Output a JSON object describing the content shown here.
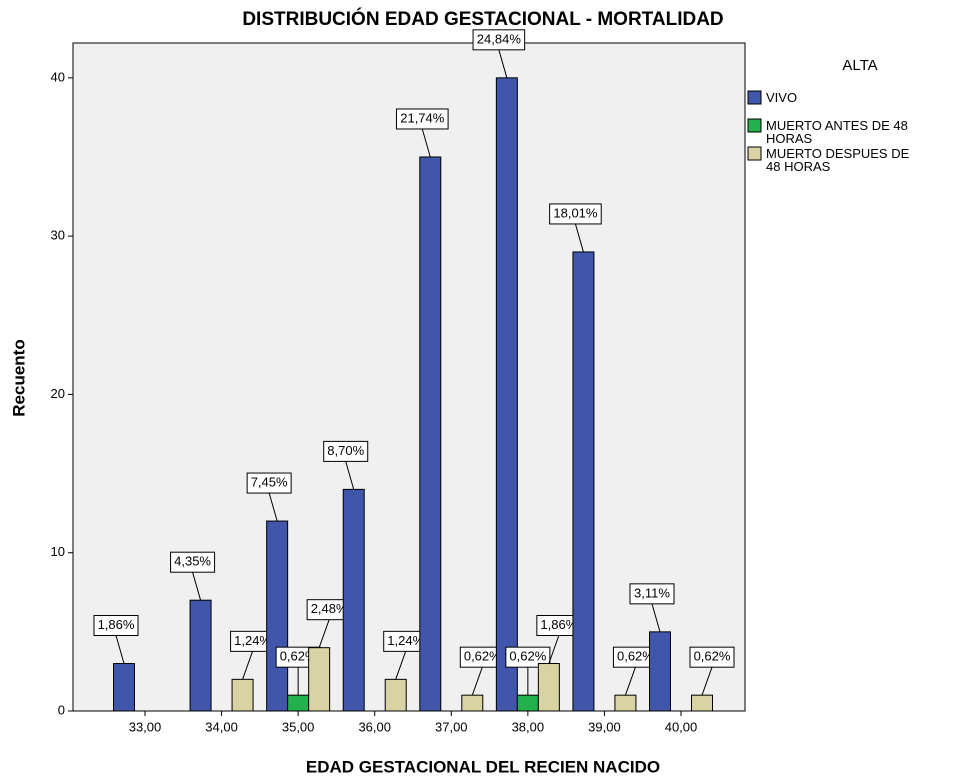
{
  "chart_data": {
    "type": "bar",
    "title": "DISTRIBUCIÓN EDAD GESTACIONAL - MORTALIDAD",
    "x_label": "EDAD GESTACIONAL DEL RECIEN NACIDO",
    "y_label": "Recuento",
    "legend_title": "ALTA",
    "categories": [
      "33,00",
      "34,00",
      "35,00",
      "36,00",
      "37,00",
      "38,00",
      "39,00",
      "40,00"
    ],
    "series": [
      {
        "name": "VIVO",
        "color": "#3f56aa",
        "values": [
          3,
          7,
          12,
          14,
          35,
          40,
          29,
          5
        ],
        "labels": [
          "1,86%",
          "4,35%",
          "7,45%",
          "8,70%",
          "21,74%",
          "24,84%",
          "18,01%",
          "3,11%"
        ]
      },
      {
        "name": "MUERTO ANTES DE 48 HORAS",
        "color": "#22b14c",
        "values": [
          null,
          null,
          1,
          null,
          null,
          1,
          null,
          null
        ],
        "labels": [
          null,
          null,
          "0,62%",
          null,
          null,
          "0,62%",
          null,
          null
        ]
      },
      {
        "name": "MUERTO DESPUES DE 48 HORAS",
        "color": "#d9d3a3",
        "values": [
          null,
          2,
          4,
          2,
          1,
          3,
          1,
          1
        ],
        "labels": [
          null,
          "1,24%",
          "2,48%",
          "1,24%",
          "0,62%",
          "1,86%",
          "0,62%",
          "0,62%"
        ]
      }
    ],
    "ylim": [
      0,
      42.2
    ],
    "yticks": [
      0,
      10,
      20,
      30,
      40
    ],
    "grid": false,
    "legend": "right"
  }
}
